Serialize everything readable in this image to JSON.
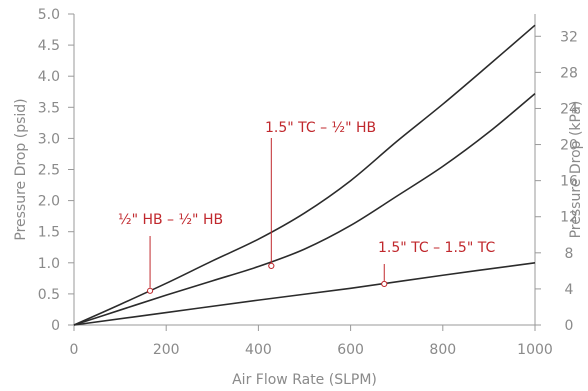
{
  "chart_data": {
    "type": "line",
    "xlabel": "Air Flow Rate (SLPM)",
    "ylabel": "Pressure Drop (psid)",
    "y2label": "Pressure Drop (kPa)",
    "xlim": [
      0,
      1000
    ],
    "ylim": [
      0,
      5.0
    ],
    "y2lim": [
      0,
      34.47
    ],
    "xticks": [
      0,
      200,
      400,
      600,
      800,
      1000
    ],
    "yticks": [
      "0",
      "0.5",
      "1.0",
      "1.5",
      "2.0",
      "2.5",
      "3.0",
      "3.5",
      "4.0",
      "4.5",
      "5.0"
    ],
    "y2ticks": [
      "0",
      "4",
      "8",
      "12",
      "16",
      "20",
      "24",
      "28",
      "32"
    ],
    "grid": false,
    "colors": {
      "line": "#2b2b2b",
      "annotation": "#c0282d",
      "axis": "#999999",
      "text": "#8a8a8a"
    },
    "series": [
      {
        "name": "½\" HB – ½\" HB",
        "x": [
          0,
          100,
          200,
          300,
          400,
          500,
          600,
          700,
          800,
          900,
          1000
        ],
        "y": [
          0,
          0.33,
          0.67,
          1.03,
          1.38,
          1.8,
          2.32,
          2.95,
          3.55,
          4.18,
          4.82
        ],
        "marker": {
          "x": 165,
          "y": 0.55
        }
      },
      {
        "name": "1.5\" TC – ½\" HB",
        "x": [
          0,
          100,
          200,
          300,
          400,
          500,
          600,
          700,
          800,
          900,
          1000
        ],
        "y": [
          0,
          0.24,
          0.48,
          0.71,
          0.94,
          1.22,
          1.6,
          2.07,
          2.55,
          3.1,
          3.72
        ],
        "marker": {
          "x": 428,
          "y": 0.95
        }
      },
      {
        "name": "1.5\" TC – 1.5\" TC",
        "x": [
          0,
          200,
          400,
          600,
          800,
          1000
        ],
        "y": [
          0,
          0.2,
          0.4,
          0.59,
          0.8,
          1.0
        ],
        "marker": {
          "x": 673,
          "y": 0.66
        }
      }
    ]
  }
}
